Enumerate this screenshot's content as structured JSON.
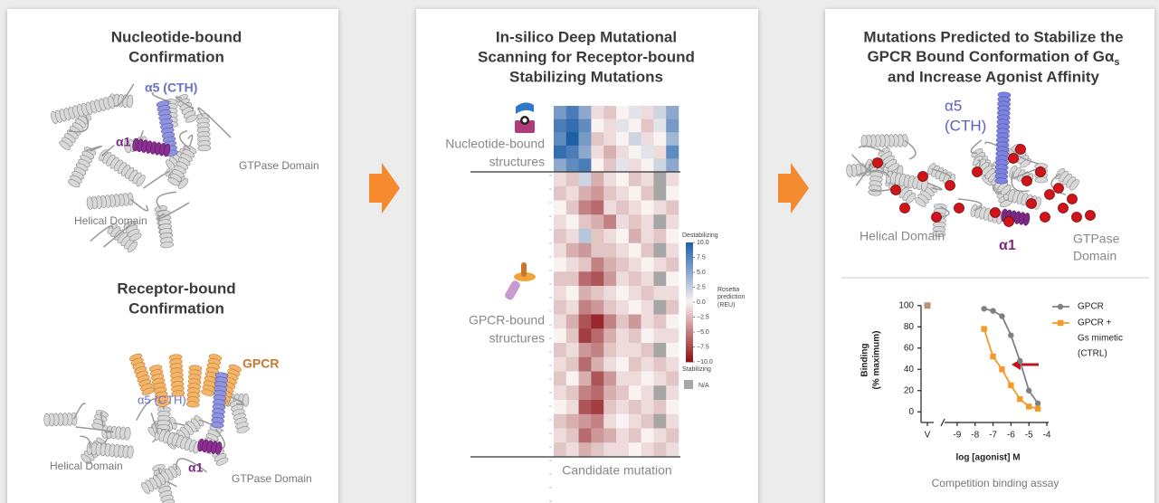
{
  "left_panel": {
    "top_title": [
      "Nucleotide-bound",
      "Confirmation"
    ],
    "top_labels": {
      "alpha5": "α5 (CTH)",
      "alpha1": "α1",
      "gtpase": "GTPase Domain",
      "helical": "Helical Domain"
    },
    "bottom_title": [
      "Receptor-bound",
      "Confirmation"
    ],
    "bottom_labels": {
      "gpcr": "GPCR",
      "alpha5": "α5 (CTH)",
      "helical": "Helical Domain",
      "alpha1": "α1",
      "gtpase": "GTPase Domain"
    }
  },
  "middle_panel": {
    "title": [
      "In-silico Deep Mutational",
      "Scanning for Receptor-bound",
      "Stabilizing Mutations"
    ],
    "nucleotide_label": [
      "Nucleotide-bound",
      "structures"
    ],
    "gpcr_label": [
      "GPCR-bound",
      "structures"
    ],
    "x_label": "Candidate mutation",
    "heatmap": {
      "colors": {
        "positive": "#1f5fa8",
        "zero": "#f8f3f1",
        "negative": "#8c1016",
        "na": "#a6a6a6"
      },
      "nucleotide_rows": 5,
      "rows": [
        [
          6,
          8,
          5,
          -1,
          -2,
          0,
          1,
          -1,
          2,
          5
        ],
        [
          8,
          9,
          7,
          0,
          -1,
          1,
          0,
          -2,
          1,
          6
        ],
        [
          7,
          10,
          6,
          -2,
          -1,
          0,
          2,
          -1,
          0,
          4
        ],
        [
          9,
          8,
          5,
          -1,
          -3,
          -1,
          0,
          1,
          -1,
          7
        ],
        [
          5,
          7,
          8,
          0,
          -2,
          1,
          -1,
          0,
          2,
          5
        ],
        [
          -1,
          -2,
          2,
          -3,
          -1,
          0,
          -2,
          -1,
          null,
          -1
        ],
        [
          -2,
          -1,
          -3,
          -4,
          -2,
          -1,
          0,
          -2,
          null,
          0
        ],
        [
          0,
          -2,
          -5,
          -6,
          -1,
          -2,
          -1,
          0,
          -1,
          -2
        ],
        [
          -1,
          0,
          -2,
          -3,
          -5,
          -1,
          -2,
          -1,
          null,
          -1
        ],
        [
          -2,
          -1,
          3,
          -2,
          -1,
          0,
          -3,
          -1,
          -2,
          0
        ],
        [
          -1,
          -3,
          -4,
          -2,
          -2,
          -1,
          0,
          -2,
          null,
          -1
        ],
        [
          0,
          -1,
          -2,
          -5,
          -3,
          -2,
          -1,
          0,
          -1,
          -2
        ],
        [
          -2,
          -2,
          -6,
          -7,
          -4,
          -1,
          -2,
          -1,
          null,
          0
        ],
        [
          -1,
          0,
          -3,
          -2,
          -1,
          0,
          -1,
          -2,
          -1,
          -1
        ],
        [
          -2,
          -1,
          -5,
          -4,
          -2,
          -1,
          0,
          -1,
          null,
          -2
        ],
        [
          -1,
          -3,
          -7,
          -9,
          -5,
          -2,
          -4,
          -1,
          -2,
          0
        ],
        [
          0,
          -2,
          -8,
          -6,
          -3,
          -1,
          -2,
          0,
          -1,
          -1
        ],
        [
          -2,
          -1,
          -4,
          -5,
          -2,
          -1,
          -1,
          -2,
          null,
          0
        ],
        [
          -1,
          -2,
          -6,
          -3,
          -1,
          0,
          -2,
          -1,
          -2,
          -1
        ],
        [
          -2,
          0,
          -3,
          -7,
          -4,
          -1,
          -1,
          0,
          -1,
          -2
        ],
        [
          -1,
          -2,
          -5,
          -6,
          -3,
          -2,
          0,
          -1,
          null,
          -1
        ],
        [
          0,
          -1,
          -7,
          -8,
          -2,
          -1,
          -2,
          -1,
          -2,
          0
        ],
        [
          -2,
          -3,
          -4,
          -5,
          -1,
          0,
          -1,
          -2,
          null,
          -1
        ],
        [
          -1,
          -2,
          -6,
          -4,
          -3,
          -1,
          -2,
          0,
          -1,
          -2
        ],
        [
          -2,
          -1,
          -3,
          -2,
          -1,
          -1,
          0,
          -1,
          -2,
          -1
        ]
      ],
      "colorbar": {
        "lim": [
          -10,
          10
        ],
        "ticks": [
          {
            "value": 10,
            "label": "10.0"
          },
          {
            "value": 7.5,
            "label": "7.5"
          },
          {
            "value": 5,
            "label": "5.0"
          },
          {
            "value": 2.5,
            "label": "2.5"
          },
          {
            "value": 0,
            "label": "0.0"
          },
          {
            "value": -2.5,
            "label": "−2.5"
          },
          {
            "value": -5,
            "label": "−5.0"
          },
          {
            "value": -7.5,
            "label": "−7.5"
          },
          {
            "value": -10,
            "label": "−10.0"
          }
        ],
        "top_label": "Destabilizing",
        "bottom_label": "Stabilizing",
        "title": [
          "Rosetta",
          "prediction",
          "(REU)"
        ],
        "na_label": "N/A"
      }
    }
  },
  "right_panel": {
    "title": [
      "Mutations Predicted to Stabilize the",
      "GPCR Bound Conformation of Gα",
      "and Increase Agonist Affinity"
    ],
    "title_subscript": "s",
    "labels": {
      "alpha5": [
        "α5",
        "(CTH)"
      ],
      "helical": "Helical Domain",
      "alpha1": "α1",
      "gtpase": [
        "GTPase",
        "Domain"
      ]
    },
    "binding_chart": {
      "type": "line",
      "x_label": "log [agonist] M",
      "y_label": [
        "Binding",
        "(% maximum)"
      ],
      "caption": "Competition binding assay",
      "xlim": [
        -9.5,
        -3.9
      ],
      "ylim": [
        -10,
        110
      ],
      "xticks": [
        -9,
        -8,
        -7,
        -6,
        -5,
        -4
      ],
      "yticks": [
        0,
        20,
        40,
        60,
        80,
        100
      ],
      "control": {
        "label": "V",
        "value": 100,
        "color": "#b8927a"
      },
      "x": [
        -7.5,
        -7,
        -6.5,
        -6,
        -5.5,
        -5,
        -4.5
      ],
      "series": [
        {
          "name": [
            "GPCR"
          ],
          "color": "#808080",
          "values": [
            97,
            95,
            90,
            72,
            48,
            20,
            8
          ]
        },
        {
          "name": [
            "GPCR +",
            "Gs mimetic",
            "(CTRL)"
          ],
          "color": "#f39a2a",
          "values": [
            78,
            52,
            40,
            25,
            12,
            5,
            3
          ]
        }
      ]
    }
  }
}
